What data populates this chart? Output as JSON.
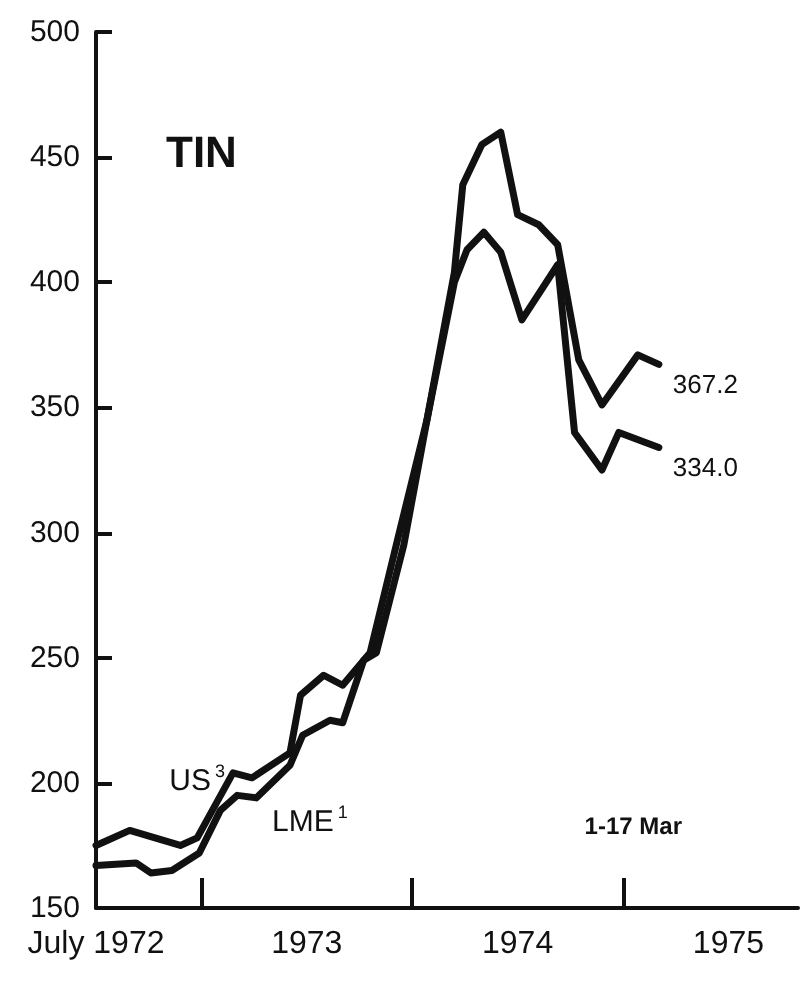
{
  "chart_data": {
    "type": "line",
    "title": "TIN",
    "xlim": [
      1972.5,
      1975.83
    ],
    "xticks": [
      {
        "value": 1972.5,
        "label": "July 1972"
      },
      {
        "value": 1973,
        "label": null
      },
      {
        "value": 1973.5,
        "label": "1973"
      },
      {
        "value": 1974,
        "label": null
      },
      {
        "value": 1974.5,
        "label": "1974"
      },
      {
        "value": 1975,
        "label": null
      },
      {
        "value": 1975.5,
        "label": "1975"
      }
    ],
    "ylim": [
      150,
      500
    ],
    "yticks": [
      150,
      200,
      250,
      300,
      350,
      400,
      450,
      500
    ],
    "marker": "none",
    "line_style": "solid",
    "annotations": [
      "1-17 Mar"
    ],
    "series": [
      {
        "name": "US$^{3}$",
        "color": "#111111",
        "x": [
          1972.5,
          1972.66,
          1972.9,
          1972.98,
          1973.15,
          1973.24,
          1973.42,
          1973.47,
          1973.58,
          1973.67,
          1973.8,
          1973.93,
          1974.07,
          1974.2,
          1974.24,
          1974.33,
          1974.42,
          1974.5,
          1974.6,
          1974.69,
          1974.79,
          1974.9,
          1975.07,
          1975.17
        ],
        "values": [
          175,
          181,
          175,
          178,
          204,
          202,
          212,
          235,
          243,
          239,
          252,
          297,
          345,
          404,
          439,
          455,
          460,
          427,
          423,
          415,
          369,
          351,
          371,
          367.2
        ],
        "value_labels": [
          null,
          null,
          null,
          null,
          null,
          null,
          null,
          null,
          null,
          null,
          null,
          null,
          null,
          null,
          null,
          null,
          null,
          null,
          null,
          null,
          null,
          null,
          null,
          "367.2"
        ]
      },
      {
        "name": "LME$^{1}$",
        "color": "#111111",
        "x": [
          1972.5,
          1972.69,
          1972.76,
          1972.86,
          1972.99,
          1973.09,
          1973.17,
          1973.26,
          1973.42,
          1973.48,
          1973.61,
          1973.67,
          1973.77,
          1973.83,
          1973.96,
          1974.07,
          1974.2,
          1974.26,
          1974.34,
          1974.42,
          1974.52,
          1974.69,
          1974.77,
          1974.9,
          1974.98,
          1975.17
        ],
        "values": [
          167,
          168,
          164,
          165,
          172,
          189,
          195,
          194,
          207,
          219,
          225,
          224,
          249,
          252,
          295,
          345,
          400,
          413,
          420,
          412,
          385,
          407,
          340,
          325,
          340,
          334.0
        ],
        "value_labels": [
          null,
          null,
          null,
          null,
          null,
          null,
          null,
          null,
          null,
          null,
          null,
          null,
          null,
          null,
          null,
          null,
          null,
          null,
          null,
          null,
          null,
          null,
          null,
          null,
          null,
          "334.0"
        ]
      }
    ]
  }
}
